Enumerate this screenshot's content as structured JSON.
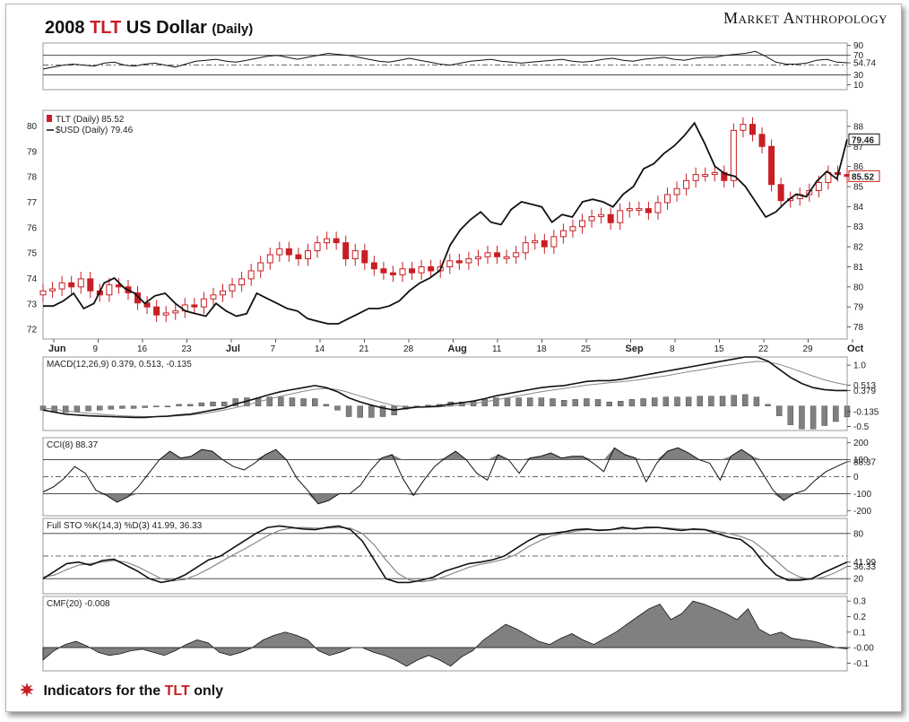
{
  "title": {
    "year": "2008",
    "ticker": "TLT",
    "rest": "US Dollar",
    "suffix": "(Daily)"
  },
  "brand": "Market Anthropology",
  "footer": {
    "prefix": "Indicators for the",
    "ticker": "TLT",
    "suffix": "only"
  },
  "colors": {
    "red": "#c81e24",
    "black": "#111111",
    "gray": "#888888",
    "hist": "#808080"
  },
  "chart_data": [
    {
      "type": "line",
      "panel": "rsi",
      "y_ticks": [
        90,
        70,
        54.74,
        30,
        10
      ],
      "y_tick_labels": [
        "90",
        "70",
        "54.74",
        "30",
        "10"
      ],
      "ylim": [
        0,
        95
      ],
      "ref_lines": [
        70,
        50,
        30
      ],
      "series": [
        {
          "values": [
            42,
            46,
            50,
            52,
            50,
            48,
            54,
            56,
            50,
            48,
            52,
            54,
            50,
            46,
            52,
            58,
            60,
            62,
            58,
            56,
            60,
            64,
            68,
            70,
            66,
            62,
            66,
            70,
            74,
            72,
            70,
            66,
            62,
            58,
            56,
            60,
            64,
            60,
            56,
            52,
            50,
            54,
            58,
            60,
            62,
            58,
            56,
            54,
            56,
            58,
            60,
            62,
            58,
            56,
            58,
            62,
            64,
            60,
            58,
            62,
            64,
            66,
            62,
            60,
            64,
            66,
            66,
            70,
            72,
            74,
            78,
            68,
            56,
            52,
            52,
            54,
            60,
            62,
            56,
            54.74
          ]
        }
      ]
    },
    {
      "type": "candlestick",
      "panel": "price",
      "x_tick_labels": [
        "Jun",
        "9",
        "16",
        "23",
        "Jul",
        "7",
        "14",
        "21",
        "28",
        "Aug",
        "11",
        "18",
        "25",
        "Sep",
        "8",
        "15",
        "22",
        "29",
        "Oct"
      ],
      "y_left_ticks": [
        80,
        79,
        78,
        77,
        76,
        75,
        74,
        73,
        72
      ],
      "y_right_ticks": [
        88,
        87,
        86,
        85,
        84,
        83,
        82,
        81,
        80,
        79,
        78
      ],
      "y_right_labels": [
        "79.46",
        "85.52"
      ],
      "legend": [
        "TLT (Daily) 85.52",
        "$USD (Daily) 79.46"
      ],
      "series": [
        {
          "name": "TLT (Daily) 85.52",
          "close": [
            79.8,
            79.9,
            80.2,
            80.0,
            80.4,
            79.8,
            79.6,
            80.1,
            80.0,
            79.7,
            79.2,
            79.0,
            78.6,
            78.7,
            78.8,
            79.1,
            79.0,
            79.4,
            79.6,
            79.8,
            80.1,
            80.4,
            80.8,
            81.2,
            81.6,
            81.9,
            81.6,
            81.4,
            81.8,
            82.2,
            82.4,
            82.2,
            81.4,
            81.8,
            81.2,
            80.9,
            80.7,
            80.6,
            80.9,
            80.7,
            81.0,
            80.8,
            81.0,
            81.3,
            81.2,
            81.4,
            81.5,
            81.7,
            81.5,
            81.5,
            81.7,
            82.2,
            82.3,
            82.0,
            82.5,
            82.8,
            83.0,
            83.3,
            83.5,
            83.6,
            83.2,
            83.8,
            83.9,
            83.9,
            83.7,
            84.2,
            84.6,
            84.9,
            85.3,
            85.6,
            85.6,
            85.7,
            85.3,
            87.8,
            88.1,
            87.6,
            87.0,
            85.1,
            84.3,
            84.4,
            84.6,
            84.8,
            85.2,
            85.7,
            85.6,
            85.52
          ]
        },
        {
          "name": "$USD (Daily) 79.46",
          "values": [
            72.9,
            72.9,
            73.1,
            73.4,
            72.8,
            73.0,
            73.8,
            74.0,
            73.6,
            73.4,
            73.0,
            73.3,
            73.4,
            73.0,
            72.7,
            72.6,
            72.5,
            73.0,
            72.7,
            72.5,
            72.6,
            73.4,
            73.2,
            73.0,
            72.8,
            72.7,
            72.4,
            72.3,
            72.2,
            72.2,
            72.4,
            72.6,
            72.8,
            72.8,
            72.9,
            73.1,
            73.5,
            73.8,
            74.0,
            74.3,
            75.3,
            75.9,
            76.3,
            76.6,
            76.2,
            76.1,
            76.7,
            77.0,
            76.9,
            76.8,
            76.2,
            76.5,
            76.4,
            77.0,
            77.1,
            77.0,
            76.8,
            77.3,
            77.6,
            78.3,
            78.5,
            78.9,
            79.2,
            79.6,
            80.1,
            79.3,
            78.4,
            78.1,
            78.0,
            77.6,
            77.0,
            76.4,
            76.6,
            77.0,
            77.3,
            77.2,
            77.8,
            78.2,
            77.9,
            79.46
          ]
        }
      ]
    },
    {
      "type": "line",
      "panel": "macd",
      "legend": "MACD(12,26,9) 0.379, 0.513, -0.135",
      "y_ticks": [
        1.0,
        0.5,
        0.0,
        -0.5
      ],
      "y_tick_labels": [
        "1.0",
        "0.513",
        "0.379",
        "-0.135",
        "-0.5"
      ],
      "ylim": [
        -0.6,
        1.2
      ],
      "series": [
        {
          "values": [
            -0.1,
            -0.15,
            -0.2,
            -0.22,
            -0.24,
            -0.25,
            -0.26,
            -0.27,
            -0.28,
            -0.28,
            -0.26,
            -0.25,
            -0.22,
            -0.2,
            -0.15,
            -0.1,
            -0.05,
            0.05,
            0.12,
            0.2,
            0.28,
            0.35,
            0.4,
            0.45,
            0.5,
            0.45,
            0.35,
            0.2,
            0.1,
            0.02,
            -0.05,
            -0.1,
            -0.06,
            -0.03,
            -0.02,
            0.0,
            0.05,
            0.08,
            0.12,
            0.18,
            0.25,
            0.3,
            0.35,
            0.4,
            0.45,
            0.48,
            0.5,
            0.55,
            0.6,
            0.62,
            0.62,
            0.65,
            0.7,
            0.75,
            0.8,
            0.85,
            0.9,
            0.95,
            1.0,
            1.05,
            1.1,
            1.15,
            1.2,
            1.2,
            1.1,
            0.9,
            0.7,
            0.55,
            0.45,
            0.4,
            0.38,
            0.379
          ]
        },
        {
          "values": [
            -0.05,
            -0.08,
            -0.12,
            -0.15,
            -0.18,
            -0.2,
            -0.22,
            -0.24,
            -0.25,
            -0.26,
            -0.26,
            -0.25,
            -0.24,
            -0.22,
            -0.19,
            -0.15,
            -0.1,
            -0.04,
            0.02,
            0.1,
            0.17,
            0.24,
            0.3,
            0.36,
            0.41,
            0.43,
            0.4,
            0.33,
            0.24,
            0.16,
            0.08,
            0.01,
            -0.02,
            -0.03,
            -0.03,
            -0.02,
            0.0,
            0.03,
            0.06,
            0.1,
            0.15,
            0.2,
            0.25,
            0.3,
            0.35,
            0.39,
            0.43,
            0.47,
            0.51,
            0.54,
            0.57,
            0.59,
            0.62,
            0.66,
            0.7,
            0.74,
            0.79,
            0.84,
            0.88,
            0.93,
            0.98,
            1.02,
            1.06,
            1.09,
            1.08,
            1.02,
            0.93,
            0.83,
            0.73,
            0.64,
            0.57,
            0.513
          ]
        }
      ]
    },
    {
      "type": "area",
      "panel": "cci",
      "legend": "CCI(8) 88.37",
      "y_ticks": [
        200,
        100,
        0,
        -100,
        -200
      ],
      "y_tick_labels": [
        "200",
        "100",
        "88.37",
        "0",
        "-100",
        "-200"
      ],
      "ylim": [
        -230,
        230
      ],
      "ref_lines": [
        100,
        0,
        -100
      ],
      "series": [
        {
          "values": [
            -90,
            -60,
            -10,
            60,
            20,
            -80,
            -110,
            -150,
            -120,
            -60,
            20,
            100,
            150,
            110,
            120,
            160,
            150,
            100,
            60,
            40,
            80,
            130,
            160,
            100,
            -10,
            -80,
            -160,
            -140,
            -100,
            -100,
            -50,
            40,
            110,
            130,
            -10,
            -110,
            -20,
            60,
            110,
            150,
            100,
            20,
            -20,
            130,
            100,
            20,
            110,
            120,
            140,
            110,
            120,
            120,
            80,
            30,
            170,
            130,
            110,
            -30,
            80,
            150,
            170,
            140,
            100,
            80,
            -20,
            120,
            160,
            120,
            20,
            -80,
            -140,
            -100,
            -80,
            -20,
            30,
            60,
            88.37
          ]
        }
      ]
    },
    {
      "type": "line",
      "panel": "stochastic",
      "legend": "Full STO %K(14,3) %D(3) 41.99, 36.33",
      "y_ticks": [
        80,
        50,
        20
      ],
      "y_tick_labels": [
        "80",
        "41.99",
        "36.33",
        "20"
      ],
      "ylim": [
        0,
        100
      ],
      "ref_lines": [
        80,
        50,
        20
      ],
      "series": [
        {
          "values": [
            20,
            30,
            40,
            42,
            38,
            44,
            46,
            38,
            30,
            20,
            15,
            18,
            25,
            35,
            45,
            50,
            60,
            70,
            80,
            88,
            90,
            88,
            86,
            85,
            88,
            90,
            85,
            70,
            45,
            20,
            15,
            15,
            18,
            22,
            30,
            35,
            40,
            42,
            45,
            50,
            60,
            70,
            78,
            80,
            82,
            85,
            86,
            84,
            85,
            88,
            86,
            88,
            88,
            86,
            84,
            86,
            85,
            80,
            75,
            72,
            60,
            40,
            25,
            18,
            18,
            20,
            28,
            35,
            41.99
          ]
        },
        {
          "values": [
            22,
            25,
            32,
            38,
            40,
            42,
            44,
            42,
            36,
            28,
            20,
            17,
            19,
            25,
            33,
            42,
            51,
            59,
            68,
            77,
            84,
            87,
            88,
            87,
            87,
            88,
            87,
            80,
            65,
            45,
            27,
            18,
            16,
            18,
            23,
            29,
            35,
            39,
            42,
            46,
            52,
            62,
            70,
            77,
            80,
            83,
            85,
            85,
            85,
            86,
            87,
            87,
            88,
            87,
            86,
            85,
            85,
            83,
            80,
            76,
            70,
            58,
            44,
            30,
            22,
            19,
            22,
            28,
            36.33
          ]
        }
      ]
    },
    {
      "type": "area",
      "panel": "cmf",
      "legend": "CMF(20) -0.008",
      "y_ticks": [
        0.3,
        0.2,
        0.1,
        0.0,
        -0.1
      ],
      "y_tick_labels": [
        "0.3",
        "0.2",
        "0.1",
        "-0.00",
        "-0.1"
      ],
      "ylim": [
        -0.15,
        0.33
      ],
      "series": [
        {
          "values": [
            -0.08,
            -0.02,
            0.02,
            0.04,
            0.01,
            -0.03,
            -0.05,
            -0.04,
            -0.02,
            -0.01,
            -0.03,
            -0.05,
            -0.02,
            0.02,
            0.05,
            0.03,
            -0.03,
            -0.05,
            -0.03,
            0.0,
            0.05,
            0.08,
            0.1,
            0.08,
            0.05,
            -0.02,
            -0.05,
            -0.03,
            0.0,
            0.0,
            -0.03,
            -0.05,
            -0.08,
            -0.12,
            -0.08,
            -0.05,
            -0.08,
            -0.12,
            -0.06,
            -0.02,
            0.05,
            0.1,
            0.15,
            0.12,
            0.08,
            0.04,
            0.02,
            0.06,
            0.09,
            0.05,
            0.02,
            0.06,
            0.1,
            0.15,
            0.2,
            0.25,
            0.28,
            0.18,
            0.22,
            0.3,
            0.28,
            0.25,
            0.22,
            0.18,
            0.25,
            0.12,
            0.08,
            0.1,
            0.06,
            0.05,
            0.04,
            0.02,
            0.0,
            -0.008
          ]
        }
      ]
    }
  ]
}
